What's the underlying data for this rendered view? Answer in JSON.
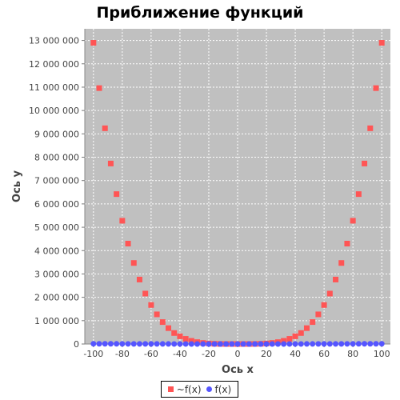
{
  "chart_data": {
    "type": "scatter",
    "title": "Приближение функций",
    "xlabel": "Ось x",
    "ylabel": "Ось y",
    "xlim": [
      -106,
      106
    ],
    "ylim": [
      0,
      13500000
    ],
    "grid": true,
    "legend": "bottom-center",
    "xticks": [
      "-100",
      "-80",
      "-60",
      "-40",
      "-20",
      "0",
      "20",
      "40",
      "60",
      "80",
      "100"
    ],
    "yticks": [
      "0",
      "1 000 000",
      "2 000 000",
      "3 000 000",
      "4 000 000",
      "5 000 000",
      "6 000 000",
      "7 000 000",
      "8 000 000",
      "9 000 000",
      "10 000 000",
      "11 000 000",
      "12 000 000",
      "13 000 000"
    ],
    "series": [
      {
        "name": "~f(x)",
        "color": "#ff5555",
        "marker": "square",
        "x": [
          -100,
          -96,
          -92,
          -88,
          -84,
          -80,
          -76,
          -72,
          -68,
          -64,
          -60,
          -56,
          -52,
          -48,
          -44,
          -40,
          -36,
          -32,
          -28,
          -24,
          -20,
          -16,
          -12,
          -8,
          -4,
          0,
          4,
          8,
          12,
          16,
          20,
          24,
          28,
          32,
          36,
          40,
          44,
          48,
          52,
          56,
          60,
          64,
          68,
          72,
          76,
          80,
          84,
          88,
          92,
          96,
          100
        ],
        "y": [
          12900000,
          10960000,
          9240000,
          7730000,
          6420000,
          5280000,
          4300000,
          3470000,
          2760000,
          2160000,
          1670000,
          1270000,
          940000,
          680000,
          470000,
          330000,
          220000,
          135000,
          80000,
          45000,
          22000,
          9000,
          3000,
          600,
          40,
          0,
          40,
          600,
          3000,
          9000,
          22000,
          45000,
          80000,
          135000,
          220000,
          330000,
          470000,
          680000,
          940000,
          1270000,
          1670000,
          2160000,
          2760000,
          3470000,
          4300000,
          5280000,
          6420000,
          7730000,
          9240000,
          10960000,
          12900000
        ]
      },
      {
        "name": "f(x)",
        "color": "#5555ff",
        "marker": "circle",
        "x": [
          -100,
          -96,
          -92,
          -88,
          -84,
          -80,
          -76,
          -72,
          -68,
          -64,
          -60,
          -56,
          -52,
          -48,
          -44,
          -40,
          -36,
          -32,
          -28,
          -24,
          -20,
          -16,
          -12,
          -8,
          -4,
          0,
          4,
          8,
          12,
          16,
          20,
          24,
          28,
          32,
          36,
          40,
          44,
          48,
          52,
          56,
          60,
          64,
          68,
          72,
          76,
          80,
          84,
          88,
          92,
          96,
          100
        ],
        "y": [
          10000,
          9216,
          8464,
          7744,
          7056,
          6400,
          5776,
          5184,
          4624,
          4096,
          3600,
          3136,
          2704,
          2304,
          1936,
          1600,
          1296,
          1024,
          784,
          576,
          400,
          256,
          144,
          64,
          16,
          0,
          16,
          64,
          144,
          256,
          400,
          576,
          784,
          1024,
          1296,
          1600,
          1936,
          2304,
          2704,
          3136,
          3600,
          4096,
          4624,
          5184,
          5776,
          6400,
          7056,
          7744,
          8464,
          9216,
          10000
        ]
      }
    ],
    "colors": {
      "plot_background": "#c0c0c0",
      "grid": "#ffffff"
    }
  }
}
